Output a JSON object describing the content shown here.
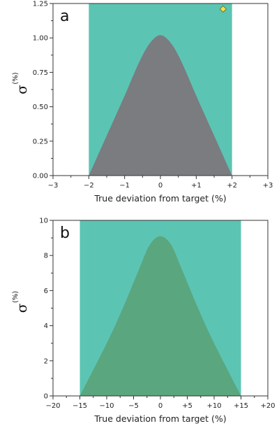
{
  "colors": {
    "band": "#5cc4b3",
    "peak_a": "#7a7c80",
    "peak_b": "#5aa67e",
    "marker": "#f2e24a",
    "marker_edge": "#6b6020",
    "axis": "#333333"
  },
  "chart_data": [
    {
      "type": "area",
      "panel_label": "a",
      "title": "",
      "xlabel": "True deviation from target (%)",
      "ylabel_symbol": "σ",
      "ylabel_unit": "(%)",
      "xlim": [
        -3,
        3
      ],
      "ylim": [
        0,
        1.25
      ],
      "xticks": [
        -3,
        -2,
        -1,
        0,
        1,
        2,
        3
      ],
      "xtick_labels": [
        "−3",
        "−2",
        "−1",
        "0",
        "+1",
        "+2",
        "+3"
      ],
      "yticks": [
        0,
        0.25,
        0.5,
        0.75,
        1.0,
        1.25
      ],
      "ytick_labels": [
        "0.00",
        "0.25",
        "0.50",
        "0.75",
        "1.00",
        "1.25"
      ],
      "band": {
        "x0": -2,
        "x1": 2,
        "y1": 1.25
      },
      "curve": {
        "x": [
          -2,
          -1.5,
          -1,
          -0.6,
          -0.3,
          0,
          0.3,
          0.6,
          1,
          1.5,
          2
        ],
        "y": [
          0,
          0.29,
          0.58,
          0.82,
          0.96,
          1.02,
          0.96,
          0.82,
          0.58,
          0.29,
          0
        ]
      },
      "marker": {
        "x": 1.75,
        "y": 1.21,
        "shape": "diamond"
      }
    },
    {
      "type": "area",
      "panel_label": "b",
      "title": "",
      "xlabel": "True deviation from target (%)",
      "ylabel_symbol": "σ",
      "ylabel_unit": "(%)",
      "xlim": [
        -20,
        20
      ],
      "ylim": [
        0,
        10
      ],
      "xticks": [
        -20,
        -15,
        -10,
        -5,
        0,
        5,
        10,
        15,
        20
      ],
      "xtick_labels": [
        "−20",
        "−15",
        "−10",
        "−5",
        "0",
        "+5",
        "+10",
        "+15",
        "+20"
      ],
      "yticks": [
        0,
        2,
        4,
        6,
        8,
        10
      ],
      "ytick_labels": [
        "0",
        "2",
        "4",
        "6",
        "8",
        "10"
      ],
      "band": {
        "x0": -15,
        "x1": 15,
        "y1": 10
      },
      "curve": {
        "x": [
          -15,
          -10,
          -7,
          -4,
          -2,
          0,
          2,
          4,
          7,
          10,
          15
        ],
        "y": [
          0,
          3.0,
          5.0,
          7.2,
          8.6,
          9.1,
          8.6,
          7.2,
          5.0,
          3.0,
          0
        ]
      }
    }
  ]
}
